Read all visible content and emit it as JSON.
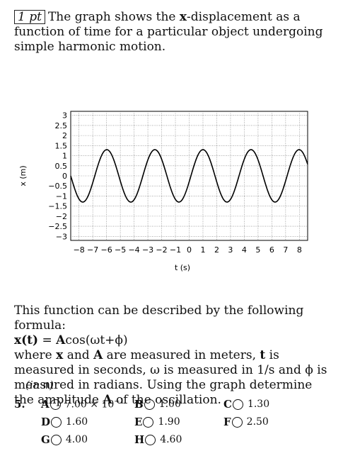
{
  "question": {
    "points_label": "1 pt",
    "intro_1": "The graph shows the ",
    "intro_bold": "x",
    "intro_2": "-displacement as a function of time for a particular object undergoing simple harmonic motion."
  },
  "chart_data": {
    "type": "line",
    "xlabel": "t (s)",
    "ylabel": "x (m)",
    "xlim": [
      -8.6,
      8.6
    ],
    "ylim": [
      -3.2,
      3.2
    ],
    "x_ticks": [
      -8,
      -7,
      -6,
      -5,
      -4,
      -3,
      -2,
      -1,
      0,
      1,
      2,
      3,
      4,
      5,
      6,
      7,
      8
    ],
    "x_tick_labels": [
      "−8",
      "−7",
      "−6",
      "−5",
      "−4",
      "−3",
      "−2",
      "−1",
      "0",
      "1",
      "2",
      "3",
      "4",
      "5",
      "6",
      "7",
      "8"
    ],
    "y_ticks": [
      3,
      2.5,
      2,
      1.5,
      1,
      0.5,
      0,
      -0.5,
      -1,
      -1.5,
      -2,
      -2.5,
      -3
    ],
    "y_tick_labels": [
      "3",
      "2.5",
      "2",
      "1.5",
      "1",
      "0.5",
      "0",
      "−0.5",
      "−1",
      "−1.5",
      "−2",
      "−2.5",
      "−3"
    ],
    "grid": true,
    "series": [
      {
        "amplitude": 1.3,
        "omega": 1.8,
        "phase": -1.8,
        "x_range": [
          -8.6,
          8.6
        ]
      }
    ]
  },
  "formula": {
    "line1": "This function can be described by the following formula:",
    "eq_x": "x(t)",
    "eq_eq": " = ",
    "eq_a": "A",
    "eq_rest": "cos(ωt+ϕ)",
    "where": "where ",
    "x": "x",
    "and": " and ",
    "a": "A",
    "m1": "  are measured in meters, ",
    "t": "t",
    "m2": " is measured in seconds, ω is measured in 1/s and ϕ is measured in radians. Using the graph determine the amplitude ",
    "a2": "A",
    "m3": " of the oscillation.",
    "unit_open": "(in ",
    "unit_m": "m",
    "unit_close": ")"
  },
  "answers": {
    "number": "5.",
    "options": [
      {
        "letter": "A",
        "mantissa": "7.00 × 10",
        "exp": "−1"
      },
      {
        "letter": "B",
        "value": "1.00"
      },
      {
        "letter": "C",
        "value": "1.30"
      },
      {
        "letter": "D",
        "value": "1.60"
      },
      {
        "letter": "E",
        "value": "1.90"
      },
      {
        "letter": "F",
        "value": "2.50"
      },
      {
        "letter": "G",
        "value": "4.00"
      },
      {
        "letter": "H",
        "value": "4.60"
      }
    ]
  }
}
